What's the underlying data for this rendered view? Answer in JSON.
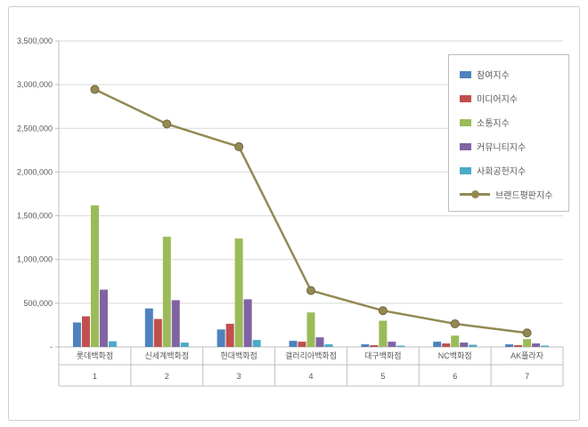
{
  "figure": {
    "background": "#ffffff",
    "border_color": "#cfcfcf",
    "grid_color": "#d9d9d9",
    "axis_color": "#bfbfbf",
    "text_color": "#595959"
  },
  "chart_data": {
    "type": "bar+line",
    "title": "",
    "grid": true,
    "legend_position": "top-right",
    "categories": [
      "롯데백화점",
      "신세계백화점",
      "현대백화점",
      "갤러리아백화점",
      "대구백화점",
      "NC백화점",
      "AK플라자"
    ],
    "category_ranks": [
      "1",
      "2",
      "3",
      "4",
      "5",
      "6",
      "7"
    ],
    "bar_series": [
      {
        "name": "참여지수",
        "color": "#4F81BD",
        "values": [
          280000,
          440000,
          200000,
          70000,
          30000,
          60000,
          30000
        ]
      },
      {
        "name": "미디어지수",
        "color": "#C0504D",
        "values": [
          350000,
          320000,
          265000,
          60000,
          20000,
          40000,
          20000
        ]
      },
      {
        "name": "소통지수",
        "color": "#9BBB59",
        "values": [
          1620000,
          1260000,
          1240000,
          395000,
          300000,
          130000,
          90000
        ]
      },
      {
        "name": "커뮤니티지수",
        "color": "#8064A2",
        "values": [
          655000,
          535000,
          545000,
          110000,
          60000,
          50000,
          40000
        ]
      },
      {
        "name": "사회공헌지수",
        "color": "#4BACC6",
        "values": [
          65000,
          50000,
          80000,
          30000,
          15000,
          25000,
          15000
        ]
      }
    ],
    "line_series": {
      "name": "브랜드평판지수",
      "color": "#938953",
      "marker_edge": "#6f6640",
      "values": [
        2945000,
        2550000,
        2290000,
        645000,
        415000,
        265000,
        160000
      ]
    },
    "y_axis": {
      "min": 0,
      "max": 3500000,
      "step": 500000,
      "tick_labels": [
        "-",
        "500,000",
        "1,000,000",
        "1,500,000",
        "2,000,000",
        "2,500,000",
        "3,000,000",
        "3,500,000"
      ]
    }
  }
}
